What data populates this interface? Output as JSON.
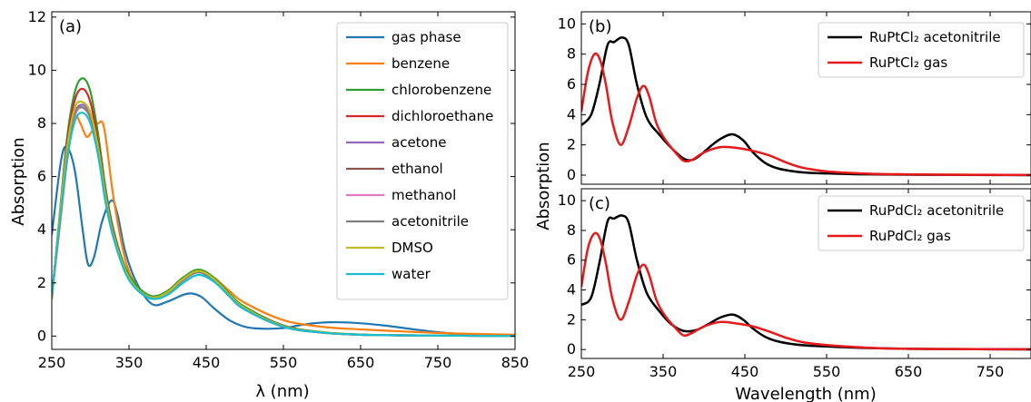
{
  "chart_data": [
    {
      "panel": "(a)",
      "type": "line",
      "xlabel": "λ (nm)",
      "ylabel": "Absorption",
      "xlim": [
        250,
        850
      ],
      "ylim": [
        -0.5,
        12.2
      ],
      "xticks": [
        250,
        350,
        450,
        550,
        650,
        750,
        850
      ],
      "yticks": [
        0,
        2,
        4,
        6,
        8,
        10,
        12
      ],
      "legend": "top-right",
      "series": [
        {
          "name": "gas phase",
          "color": "#1f77b4",
          "x": [
            250,
            262,
            270,
            280,
            290,
            297,
            305,
            315,
            327,
            335,
            345,
            360,
            380,
            400,
            420,
            432,
            445,
            460,
            480,
            500,
            520,
            550,
            580,
            610,
            640,
            680,
            720,
            760,
            800,
            850
          ],
          "y": [
            3.8,
            6.6,
            7.1,
            6.2,
            4.0,
            2.7,
            3.0,
            4.3,
            5.1,
            4.6,
            3.2,
            2.0,
            1.2,
            1.3,
            1.55,
            1.6,
            1.45,
            1.05,
            0.6,
            0.35,
            0.28,
            0.3,
            0.45,
            0.52,
            0.5,
            0.4,
            0.25,
            0.12,
            0.05,
            0.02
          ]
        },
        {
          "name": "benzene",
          "color": "#ff7f0e",
          "x": [
            250,
            260,
            270,
            280,
            287,
            295,
            302,
            310,
            318,
            330,
            345,
            360,
            380,
            400,
            420,
            440,
            460,
            480,
            500,
            550,
            600,
            650,
            700,
            750,
            800,
            850
          ],
          "y": [
            1.5,
            4.0,
            6.6,
            8.2,
            8.0,
            7.5,
            7.7,
            8.0,
            7.8,
            5.2,
            2.9,
            1.9,
            1.5,
            1.7,
            2.2,
            2.45,
            2.2,
            1.7,
            1.25,
            0.6,
            0.35,
            0.25,
            0.18,
            0.12,
            0.08,
            0.05
          ]
        },
        {
          "name": "chlorobenzene",
          "color": "#2ca02c",
          "x": [
            250,
            260,
            270,
            280,
            290,
            300,
            310,
            320,
            330,
            345,
            360,
            380,
            400,
            420,
            440,
            460,
            480,
            500,
            550,
            600,
            650,
            700,
            750,
            800,
            850
          ],
          "y": [
            1.4,
            4.5,
            7.5,
            9.2,
            9.7,
            9.2,
            7.6,
            5.5,
            4.0,
            2.6,
            1.9,
            1.5,
            1.7,
            2.2,
            2.5,
            2.2,
            1.6,
            1.1,
            0.4,
            0.15,
            0.06,
            0.03,
            0.02,
            0.01,
            0.0
          ]
        },
        {
          "name": "dichloroethane",
          "color": "#d62728",
          "x": [
            250,
            260,
            270,
            280,
            290,
            300,
            310,
            320,
            330,
            345,
            360,
            380,
            400,
            420,
            440,
            460,
            480,
            500,
            550,
            600,
            650,
            700,
            750,
            800,
            850
          ],
          "y": [
            1.4,
            4.4,
            7.3,
            8.9,
            9.3,
            8.8,
            7.3,
            5.3,
            3.9,
            2.5,
            1.8,
            1.45,
            1.65,
            2.15,
            2.45,
            2.15,
            1.55,
            1.05,
            0.38,
            0.14,
            0.05,
            0.03,
            0.02,
            0.01,
            0.0
          ]
        },
        {
          "name": "acetone",
          "color": "#9467bd",
          "x": [
            250,
            260,
            270,
            280,
            290,
            300,
            310,
            320,
            330,
            345,
            360,
            380,
            400,
            420,
            440,
            460,
            480,
            500,
            550,
            600,
            650,
            700,
            750,
            800,
            850
          ],
          "y": [
            1.4,
            4.3,
            7.0,
            8.4,
            8.7,
            8.3,
            7.0,
            5.1,
            3.8,
            2.5,
            1.8,
            1.45,
            1.6,
            2.1,
            2.4,
            2.1,
            1.5,
            1.0,
            0.36,
            0.13,
            0.05,
            0.03,
            0.02,
            0.01,
            0.0
          ]
        },
        {
          "name": "ethanol",
          "color": "#8c564b",
          "x": [
            250,
            260,
            270,
            280,
            290,
            300,
            310,
            320,
            330,
            345,
            360,
            380,
            400,
            420,
            440,
            460,
            480,
            500,
            550,
            600,
            650,
            700,
            750,
            800,
            850
          ],
          "y": [
            1.4,
            4.3,
            7.0,
            8.4,
            8.6,
            8.2,
            6.9,
            5.0,
            3.7,
            2.45,
            1.8,
            1.45,
            1.6,
            2.1,
            2.4,
            2.1,
            1.5,
            1.0,
            0.35,
            0.13,
            0.05,
            0.03,
            0.02,
            0.01,
            0.0
          ]
        },
        {
          "name": "methanol",
          "color": "#e377c2",
          "x": [
            250,
            260,
            270,
            280,
            290,
            300,
            310,
            320,
            330,
            345,
            360,
            380,
            400,
            420,
            440,
            460,
            480,
            500,
            550,
            600,
            650,
            700,
            750,
            800,
            850
          ],
          "y": [
            1.4,
            4.3,
            6.9,
            8.3,
            8.6,
            8.2,
            6.9,
            5.0,
            3.7,
            2.45,
            1.8,
            1.45,
            1.6,
            2.1,
            2.4,
            2.1,
            1.5,
            1.0,
            0.35,
            0.13,
            0.05,
            0.03,
            0.02,
            0.01,
            0.0
          ]
        },
        {
          "name": "acetonitrile",
          "color": "#7f7f7f",
          "x": [
            250,
            260,
            270,
            280,
            290,
            300,
            310,
            320,
            330,
            345,
            360,
            380,
            400,
            420,
            440,
            460,
            480,
            500,
            550,
            600,
            650,
            700,
            750,
            800,
            850
          ],
          "y": [
            1.4,
            4.3,
            6.9,
            8.4,
            8.6,
            8.2,
            6.9,
            5.0,
            3.7,
            2.45,
            1.8,
            1.45,
            1.6,
            2.1,
            2.4,
            2.1,
            1.5,
            1.0,
            0.35,
            0.13,
            0.05,
            0.03,
            0.02,
            0.01,
            0.0
          ]
        },
        {
          "name": "DMSO",
          "color": "#bcbd22",
          "x": [
            250,
            260,
            270,
            280,
            290,
            300,
            310,
            320,
            330,
            345,
            360,
            380,
            400,
            420,
            440,
            460,
            480,
            500,
            550,
            600,
            650,
            700,
            750,
            800,
            850
          ],
          "y": [
            1.4,
            4.4,
            7.1,
            8.6,
            8.8,
            8.4,
            7.1,
            5.2,
            3.8,
            2.5,
            1.8,
            1.45,
            1.65,
            2.15,
            2.45,
            2.15,
            1.55,
            1.05,
            0.37,
            0.14,
            0.05,
            0.03,
            0.02,
            0.01,
            0.0
          ]
        },
        {
          "name": "water",
          "color": "#17becf",
          "x": [
            250,
            260,
            270,
            280,
            290,
            300,
            310,
            320,
            330,
            345,
            360,
            380,
            400,
            420,
            440,
            460,
            480,
            500,
            550,
            600,
            650,
            700,
            750,
            800,
            850
          ],
          "y": [
            1.5,
            4.2,
            6.7,
            8.1,
            8.4,
            8.0,
            6.8,
            5.0,
            3.7,
            2.4,
            1.75,
            1.4,
            1.55,
            2.0,
            2.3,
            2.05,
            1.5,
            1.0,
            0.35,
            0.13,
            0.05,
            0.03,
            0.02,
            0.01,
            0.0
          ]
        }
      ]
    },
    {
      "panel": "(b)",
      "type": "line",
      "xlabel": "",
      "ylabel": "",
      "xlim": [
        250,
        800
      ],
      "ylim": [
        -0.6,
        10.8
      ],
      "xticks": [
        250,
        350,
        450,
        550,
        650,
        750
      ],
      "yticks": [
        0,
        2,
        4,
        6,
        8,
        10
      ],
      "legend": "top-right",
      "series": [
        {
          "name": "RuPtCl₂ acetonitrile",
          "color": "#000000",
          "x": [
            250,
            262,
            272,
            282,
            290,
            300,
            308,
            318,
            330,
            345,
            360,
            375,
            385,
            395,
            410,
            422,
            435,
            448,
            460,
            475,
            490,
            510,
            530,
            560,
            600,
            650,
            700,
            750,
            800
          ],
          "y": [
            3.3,
            4.0,
            6.0,
            8.6,
            8.8,
            9.1,
            8.6,
            6.0,
            3.8,
            2.7,
            1.8,
            1.1,
            1.0,
            1.3,
            2.0,
            2.45,
            2.7,
            2.3,
            1.5,
            0.8,
            0.45,
            0.25,
            0.15,
            0.1,
            0.05,
            0.03,
            0.02,
            0.01,
            0.0
          ]
        },
        {
          "name": "RuPtCl₂ gas",
          "color": "#e8191b",
          "x": [
            250,
            258,
            266,
            273,
            280,
            288,
            298,
            308,
            318,
            326,
            333,
            342,
            352,
            365,
            375,
            385,
            400,
            420,
            440,
            460,
            480,
            500,
            520,
            550,
            600,
            650,
            700,
            750,
            800
          ],
          "y": [
            4.2,
            6.8,
            8.0,
            7.6,
            6.0,
            3.5,
            2.0,
            3.2,
            5.1,
            5.9,
            5.2,
            3.4,
            2.4,
            1.5,
            0.95,
            1.0,
            1.5,
            1.85,
            1.8,
            1.6,
            1.3,
            0.85,
            0.5,
            0.25,
            0.1,
            0.05,
            0.03,
            0.02,
            0.01
          ]
        }
      ]
    },
    {
      "panel": "(c)",
      "type": "line",
      "xlabel": "Wavelength (nm)",
      "ylabel": "Absorption",
      "xlim": [
        250,
        800
      ],
      "ylim": [
        -0.6,
        10.8
      ],
      "xticks": [
        250,
        350,
        450,
        550,
        650,
        750
      ],
      "yticks": [
        0,
        2,
        4,
        6,
        8,
        10
      ],
      "legend": "top-right",
      "series": [
        {
          "name": "RuPdCl₂ acetonitrile",
          "color": "#000000",
          "x": [
            250,
            262,
            272,
            282,
            290,
            300,
            308,
            318,
            330,
            345,
            360,
            375,
            390,
            405,
            420,
            435,
            448,
            460,
            475,
            490,
            510,
            530,
            560,
            600,
            650,
            700,
            750,
            800
          ],
          "y": [
            3.0,
            3.5,
            5.8,
            8.6,
            8.8,
            9.0,
            8.5,
            6.0,
            3.8,
            2.6,
            1.7,
            1.25,
            1.3,
            1.7,
            2.15,
            2.35,
            2.0,
            1.4,
            0.85,
            0.55,
            0.35,
            0.25,
            0.18,
            0.1,
            0.05,
            0.03,
            0.02,
            0.01
          ]
        },
        {
          "name": "RuPdCl₂ gas",
          "color": "#e8191b",
          "x": [
            250,
            258,
            266,
            273,
            280,
            288,
            298,
            308,
            318,
            326,
            333,
            342,
            352,
            365,
            375,
            385,
            400,
            420,
            440,
            460,
            480,
            500,
            520,
            550,
            600,
            650,
            700,
            750,
            800
          ],
          "y": [
            4.2,
            6.8,
            7.8,
            7.4,
            5.8,
            3.4,
            2.0,
            3.2,
            5.0,
            5.7,
            5.0,
            3.3,
            2.3,
            1.45,
            0.95,
            1.1,
            1.55,
            1.85,
            1.75,
            1.55,
            1.2,
            0.8,
            0.5,
            0.3,
            0.12,
            0.05,
            0.03,
            0.02,
            0.01
          ]
        }
      ]
    }
  ]
}
